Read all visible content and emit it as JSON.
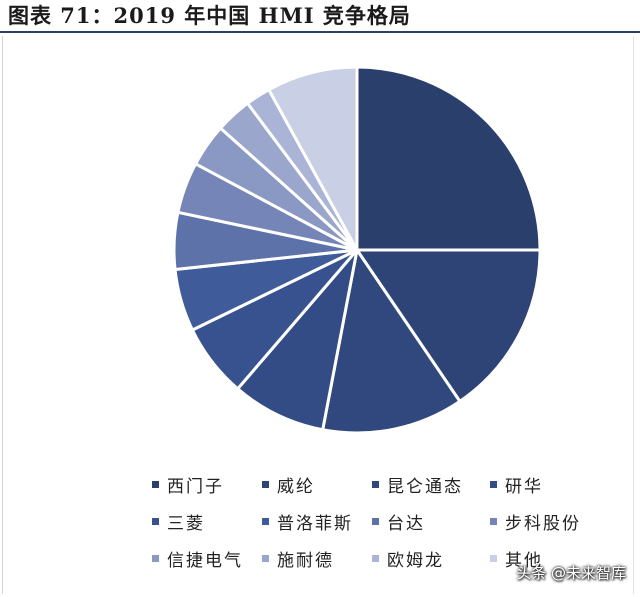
{
  "figure": {
    "title": "图表 71：2019 年中国 HMI 竞争格局"
  },
  "chart_data": {
    "type": "pie",
    "title": "",
    "slices": [
      {
        "label": "西门子",
        "value": 25.0,
        "color": "#2b3f6d"
      },
      {
        "label": "威纶",
        "value": 15.5,
        "color": "#2e4476"
      },
      {
        "label": "昆仑通态",
        "value": 12.5,
        "color": "#30487e"
      },
      {
        "label": "研华",
        "value": 8.3,
        "color": "#334c85"
      },
      {
        "label": "三菱",
        "value": 6.5,
        "color": "#38528f"
      },
      {
        "label": "普洛菲斯",
        "value": 5.5,
        "color": "#3f5b99"
      },
      {
        "label": "台达",
        "value": 5.0,
        "color": "#5c72a9"
      },
      {
        "label": "步科股份",
        "value": 4.5,
        "color": "#7585b7"
      },
      {
        "label": "信捷电气",
        "value": 3.8,
        "color": "#8a99c4"
      },
      {
        "label": "施耐德",
        "value": 3.2,
        "color": "#9aa6cc"
      },
      {
        "label": "欧姆龙",
        "value": 2.2,
        "color": "#aab4d6"
      },
      {
        "label": "其他",
        "value": 8.0,
        "color": "#c9cfe5"
      }
    ],
    "legend": "bottom"
  },
  "watermark": {
    "text": "头条 @未来智库"
  }
}
